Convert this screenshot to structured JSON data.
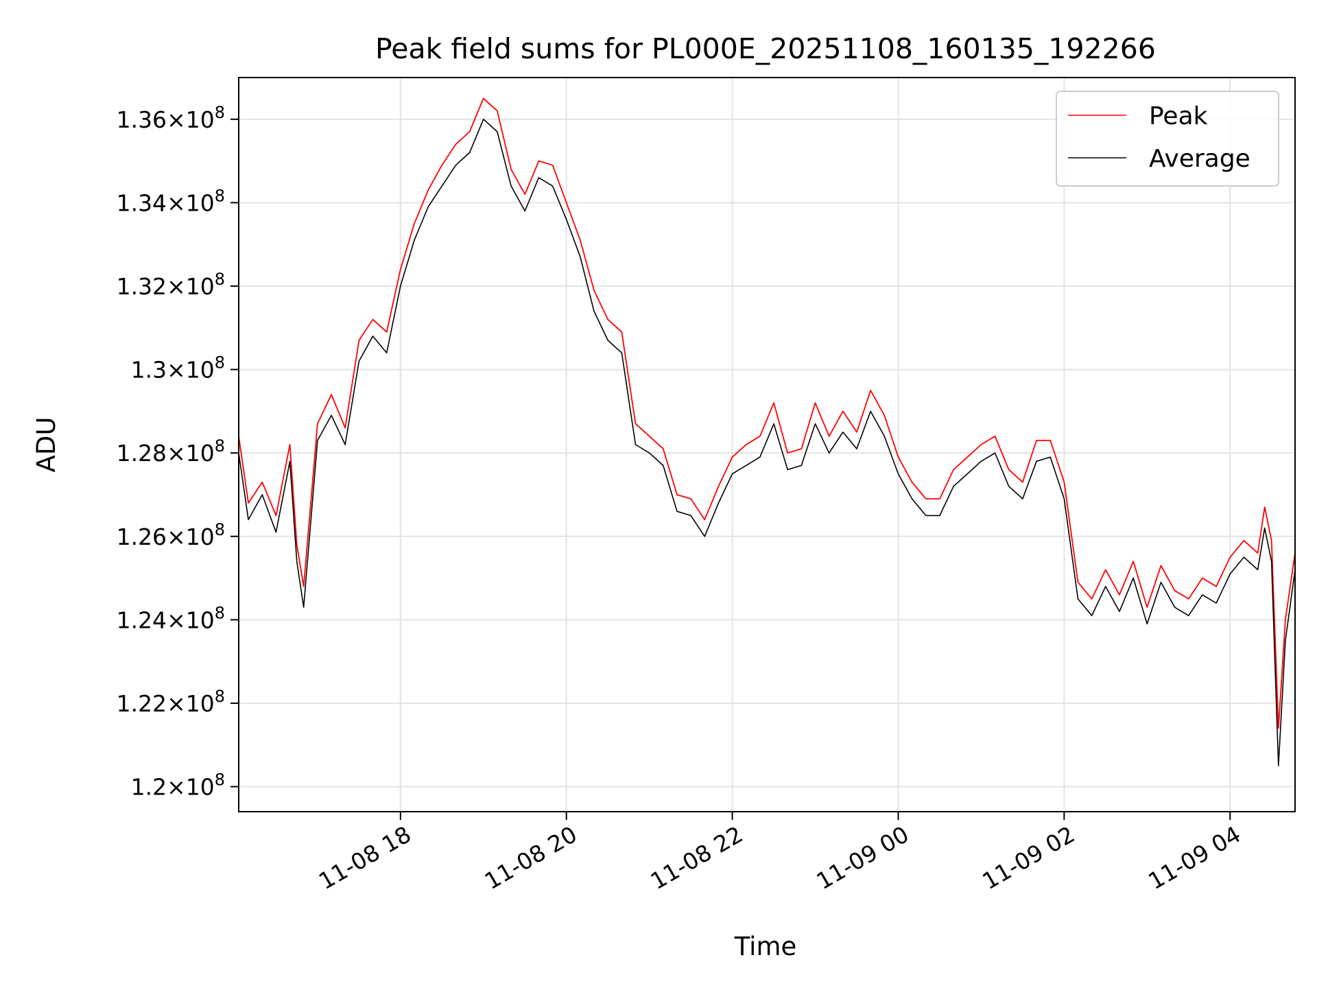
{
  "chart_data": {
    "type": "line",
    "title": "Peak field sums for PL000E_20251108_160135_192266",
    "xlabel": "Time",
    "ylabel": "ADU",
    "x_axis_type": "datetime",
    "xlim": [
      "2025-11-08 16:03",
      "2025-11-09 04:47"
    ],
    "ylim": [
      119400000,
      137000000
    ],
    "x_ticks": [
      {
        "value": "2025-11-08 18:00",
        "label": "11-08 18"
      },
      {
        "value": "2025-11-08 20:00",
        "label": "11-08 20"
      },
      {
        "value": "2025-11-08 22:00",
        "label": "11-08 22"
      },
      {
        "value": "2025-11-09 00:00",
        "label": "11-09 00"
      },
      {
        "value": "2025-11-09 02:00",
        "label": "11-09 02"
      },
      {
        "value": "2025-11-09 04:00",
        "label": "11-09 04"
      }
    ],
    "y_ticks": [
      {
        "value": 120000000,
        "mantissa": "1.2",
        "exponent": "8"
      },
      {
        "value": 122000000,
        "mantissa": "1.22",
        "exponent": "8"
      },
      {
        "value": 124000000,
        "mantissa": "1.24",
        "exponent": "8"
      },
      {
        "value": 126000000,
        "mantissa": "1.26",
        "exponent": "8"
      },
      {
        "value": 128000000,
        "mantissa": "1.28",
        "exponent": "8"
      },
      {
        "value": 130000000,
        "mantissa": "1.3",
        "exponent": "8"
      },
      {
        "value": 132000000,
        "mantissa": "1.32",
        "exponent": "8"
      },
      {
        "value": 134000000,
        "mantissa": "1.34",
        "exponent": "8"
      },
      {
        "value": 136000000,
        "mantissa": "1.36",
        "exponent": "8"
      }
    ],
    "grid": true,
    "legend_position": "top-right",
    "series": [
      {
        "name": "Peak",
        "color": "#ff0000",
        "x": [
          "2025-11-08 16:03",
          "2025-11-08 16:10",
          "2025-11-08 16:20",
          "2025-11-08 16:30",
          "2025-11-08 16:40",
          "2025-11-08 16:45",
          "2025-11-08 16:50",
          "2025-11-08 17:00",
          "2025-11-08 17:10",
          "2025-11-08 17:20",
          "2025-11-08 17:30",
          "2025-11-08 17:40",
          "2025-11-08 17:50",
          "2025-11-08 18:00",
          "2025-11-08 18:10",
          "2025-11-08 18:20",
          "2025-11-08 18:30",
          "2025-11-08 18:40",
          "2025-11-08 18:50",
          "2025-11-08 19:00",
          "2025-11-08 19:10",
          "2025-11-08 19:20",
          "2025-11-08 19:30",
          "2025-11-08 19:40",
          "2025-11-08 19:50",
          "2025-11-08 20:00",
          "2025-11-08 20:10",
          "2025-11-08 20:20",
          "2025-11-08 20:30",
          "2025-11-08 20:40",
          "2025-11-08 20:50",
          "2025-11-08 21:00",
          "2025-11-08 21:10",
          "2025-11-08 21:20",
          "2025-11-08 21:30",
          "2025-11-08 21:40",
          "2025-11-08 21:50",
          "2025-11-08 22:00",
          "2025-11-08 22:10",
          "2025-11-08 22:20",
          "2025-11-08 22:30",
          "2025-11-08 22:40",
          "2025-11-08 22:50",
          "2025-11-08 23:00",
          "2025-11-08 23:10",
          "2025-11-08 23:20",
          "2025-11-08 23:30",
          "2025-11-08 23:40",
          "2025-11-08 23:50",
          "2025-11-09 00:00",
          "2025-11-09 00:10",
          "2025-11-09 00:20",
          "2025-11-09 00:30",
          "2025-11-09 00:40",
          "2025-11-09 00:50",
          "2025-11-09 01:00",
          "2025-11-09 01:10",
          "2025-11-09 01:20",
          "2025-11-09 01:30",
          "2025-11-09 01:40",
          "2025-11-09 01:50",
          "2025-11-09 02:00",
          "2025-11-09 02:10",
          "2025-11-09 02:20",
          "2025-11-09 02:30",
          "2025-11-09 02:40",
          "2025-11-09 02:50",
          "2025-11-09 03:00",
          "2025-11-09 03:10",
          "2025-11-09 03:20",
          "2025-11-09 03:30",
          "2025-11-09 03:40",
          "2025-11-09 03:50",
          "2025-11-09 04:00",
          "2025-11-09 04:10",
          "2025-11-09 04:20",
          "2025-11-09 04:25",
          "2025-11-09 04:30",
          "2025-11-09 04:35",
          "2025-11-09 04:40",
          "2025-11-09 04:47"
        ],
        "y": [
          128400000,
          126800000,
          127300000,
          126500000,
          128200000,
          125800000,
          124800000,
          128700000,
          129400000,
          128600000,
          130700000,
          131200000,
          130900000,
          132400000,
          133500000,
          134300000,
          134900000,
          135400000,
          135700000,
          136500000,
          136200000,
          134800000,
          134200000,
          135000000,
          134900000,
          134000000,
          133100000,
          131900000,
          131200000,
          130900000,
          128700000,
          128400000,
          128100000,
          127000000,
          126900000,
          126400000,
          127200000,
          127900000,
          128200000,
          128400000,
          129200000,
          128000000,
          128100000,
          129200000,
          128400000,
          129000000,
          128500000,
          129500000,
          128900000,
          127900000,
          127300000,
          126900000,
          126900000,
          127600000,
          127900000,
          128200000,
          128400000,
          127600000,
          127300000,
          128300000,
          128300000,
          127300000,
          124900000,
          124500000,
          125200000,
          124600000,
          125400000,
          124300000,
          125300000,
          124700000,
          124500000,
          125000000,
          124800000,
          125500000,
          125900000,
          125600000,
          126700000,
          125900000,
          121400000,
          124000000,
          125600000
        ]
      },
      {
        "name": "Average",
        "color": "#000000",
        "x": [
          "2025-11-08 16:03",
          "2025-11-08 16:10",
          "2025-11-08 16:20",
          "2025-11-08 16:30",
          "2025-11-08 16:40",
          "2025-11-08 16:45",
          "2025-11-08 16:50",
          "2025-11-08 17:00",
          "2025-11-08 17:10",
          "2025-11-08 17:20",
          "2025-11-08 17:30",
          "2025-11-08 17:40",
          "2025-11-08 17:50",
          "2025-11-08 18:00",
          "2025-11-08 18:10",
          "2025-11-08 18:20",
          "2025-11-08 18:30",
          "2025-11-08 18:40",
          "2025-11-08 18:50",
          "2025-11-08 19:00",
          "2025-11-08 19:10",
          "2025-11-08 19:20",
          "2025-11-08 19:30",
          "2025-11-08 19:40",
          "2025-11-08 19:50",
          "2025-11-08 20:00",
          "2025-11-08 20:10",
          "2025-11-08 20:20",
          "2025-11-08 20:30",
          "2025-11-08 20:40",
          "2025-11-08 20:50",
          "2025-11-08 21:00",
          "2025-11-08 21:10",
          "2025-11-08 21:20",
          "2025-11-08 21:30",
          "2025-11-08 21:40",
          "2025-11-08 21:50",
          "2025-11-08 22:00",
          "2025-11-08 22:10",
          "2025-11-08 22:20",
          "2025-11-08 22:30",
          "2025-11-08 22:40",
          "2025-11-08 22:50",
          "2025-11-08 23:00",
          "2025-11-08 23:10",
          "2025-11-08 23:20",
          "2025-11-08 23:30",
          "2025-11-08 23:40",
          "2025-11-08 23:50",
          "2025-11-09 00:00",
          "2025-11-09 00:10",
          "2025-11-09 00:20",
          "2025-11-09 00:30",
          "2025-11-09 00:40",
          "2025-11-09 00:50",
          "2025-11-09 01:00",
          "2025-11-09 01:10",
          "2025-11-09 01:20",
          "2025-11-09 01:30",
          "2025-11-09 01:40",
          "2025-11-09 01:50",
          "2025-11-09 02:00",
          "2025-11-09 02:10",
          "2025-11-09 02:20",
          "2025-11-09 02:30",
          "2025-11-09 02:40",
          "2025-11-09 02:50",
          "2025-11-09 03:00",
          "2025-11-09 03:10",
          "2025-11-09 03:20",
          "2025-11-09 03:30",
          "2025-11-09 03:40",
          "2025-11-09 03:50",
          "2025-11-09 04:00",
          "2025-11-09 04:10",
          "2025-11-09 04:20",
          "2025-11-09 04:25",
          "2025-11-09 04:30",
          "2025-11-09 04:35",
          "2025-11-09 04:40",
          "2025-11-09 04:47"
        ],
        "y": [
          128000000,
          126400000,
          127000000,
          126100000,
          127800000,
          125400000,
          124300000,
          128300000,
          128900000,
          128200000,
          130200000,
          130800000,
          130400000,
          132000000,
          133100000,
          133900000,
          134400000,
          134900000,
          135200000,
          136000000,
          135700000,
          134400000,
          133800000,
          134600000,
          134400000,
          133600000,
          132700000,
          131400000,
          130700000,
          130400000,
          128200000,
          128000000,
          127700000,
          126600000,
          126500000,
          126000000,
          126800000,
          127500000,
          127700000,
          127900000,
          128700000,
          127600000,
          127700000,
          128700000,
          128000000,
          128500000,
          128100000,
          129000000,
          128400000,
          127500000,
          126900000,
          126500000,
          126500000,
          127200000,
          127500000,
          127800000,
          128000000,
          127200000,
          126900000,
          127800000,
          127900000,
          126900000,
          124500000,
          124100000,
          124800000,
          124200000,
          125000000,
          123900000,
          124900000,
          124300000,
          124100000,
          124600000,
          124400000,
          125100000,
          125500000,
          125200000,
          126200000,
          125400000,
          120500000,
          123500000,
          125200000
        ]
      }
    ]
  }
}
